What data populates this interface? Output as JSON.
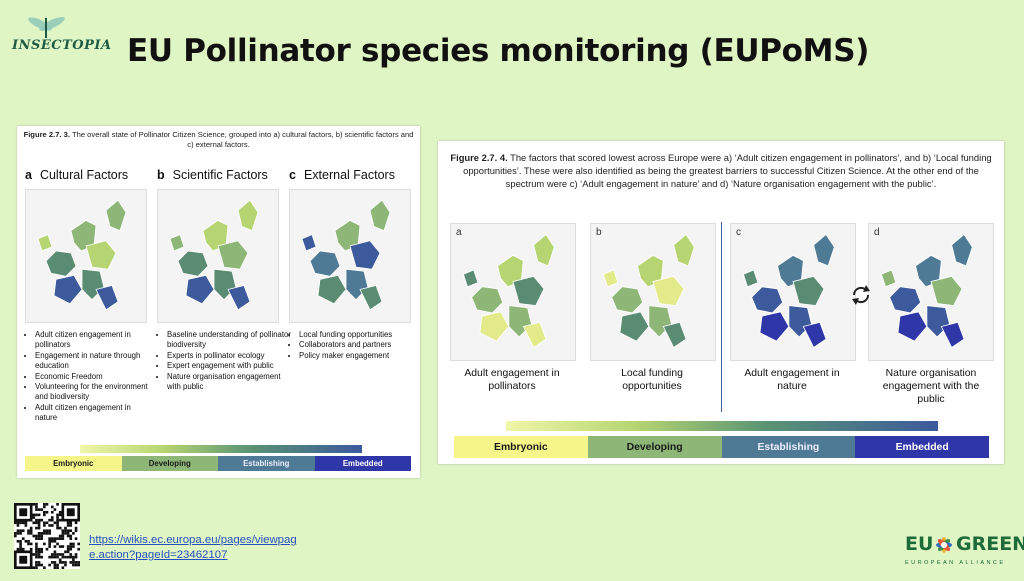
{
  "header": {
    "logo_text": "INSECTOPIA",
    "title": "EU Pollinator species monitoring (EUPoMS)"
  },
  "left_figure": {
    "caption_label": "Figure 2.7. 3.",
    "caption_text": " The overall state of Pollinator Citizen Science, grouped into a) cultural factors, b) scientific factors and c) external factors.",
    "sections": [
      {
        "letter": "a",
        "title": "Cultural Factors",
        "bullets": [
          "Adult citizen engagement in pollinators",
          "Engagement in nature through education",
          "Economic Freedom",
          "Volunteering for the environment and biodiversity",
          "Adult citizen engagement in nature"
        ]
      },
      {
        "letter": "b",
        "title": "Scientific Factors",
        "bullets": [
          "Baseline understanding of pollinator biodiversity",
          "Experts in pollinator ecology",
          "Expert engagement with public",
          "Nature organisation engagement with public"
        ]
      },
      {
        "letter": "c",
        "title": "External Factors",
        "bullets": [
          "Local funding opportunities",
          "Collaborators and partners",
          "Policy maker engagement"
        ]
      }
    ],
    "scale": [
      "Embryonic",
      "Developing",
      "Establishing",
      "Embedded"
    ]
  },
  "right_figure": {
    "caption_label": "Figure 2.7. 4.",
    "caption_text": " The factors that scored lowest across Europe were a) ‘Adult citizen engagement in pollinators’, and b) ‘Local funding opportunities’. These were also identified as being the greatest barriers to successful Citizen Science. At the other end of the spectrum were c) ‘Adult engagement in nature’ and d) ‘Nature organisation engagement with the public’.",
    "maps": [
      {
        "letter": "a",
        "label": "Adult engagement in pollinators"
      },
      {
        "letter": "b",
        "label": "Local funding opportunities"
      },
      {
        "letter": "c",
        "label": "Adult engagement in nature"
      },
      {
        "letter": "d",
        "label": "Nature organisation engagement with the public"
      }
    ],
    "scale": [
      "Embryonic",
      "Developing",
      "Establishing",
      "Embedded"
    ]
  },
  "scale_colors": [
    "#f5f58a",
    "#8db677",
    "#4f7a95",
    "#2f36a8"
  ],
  "footer": {
    "link": "https://wikis.ec.europa.eu/pages/viewpage.action?pageId=23462107",
    "link_line1": "https://wikis.ec.europa.eu/pages/viewpag",
    "link_line2": "e.action?pageId=23462107",
    "eu_green": "EU GREEN",
    "eu_green_sub": "EUROPEAN ALLIANCE"
  }
}
